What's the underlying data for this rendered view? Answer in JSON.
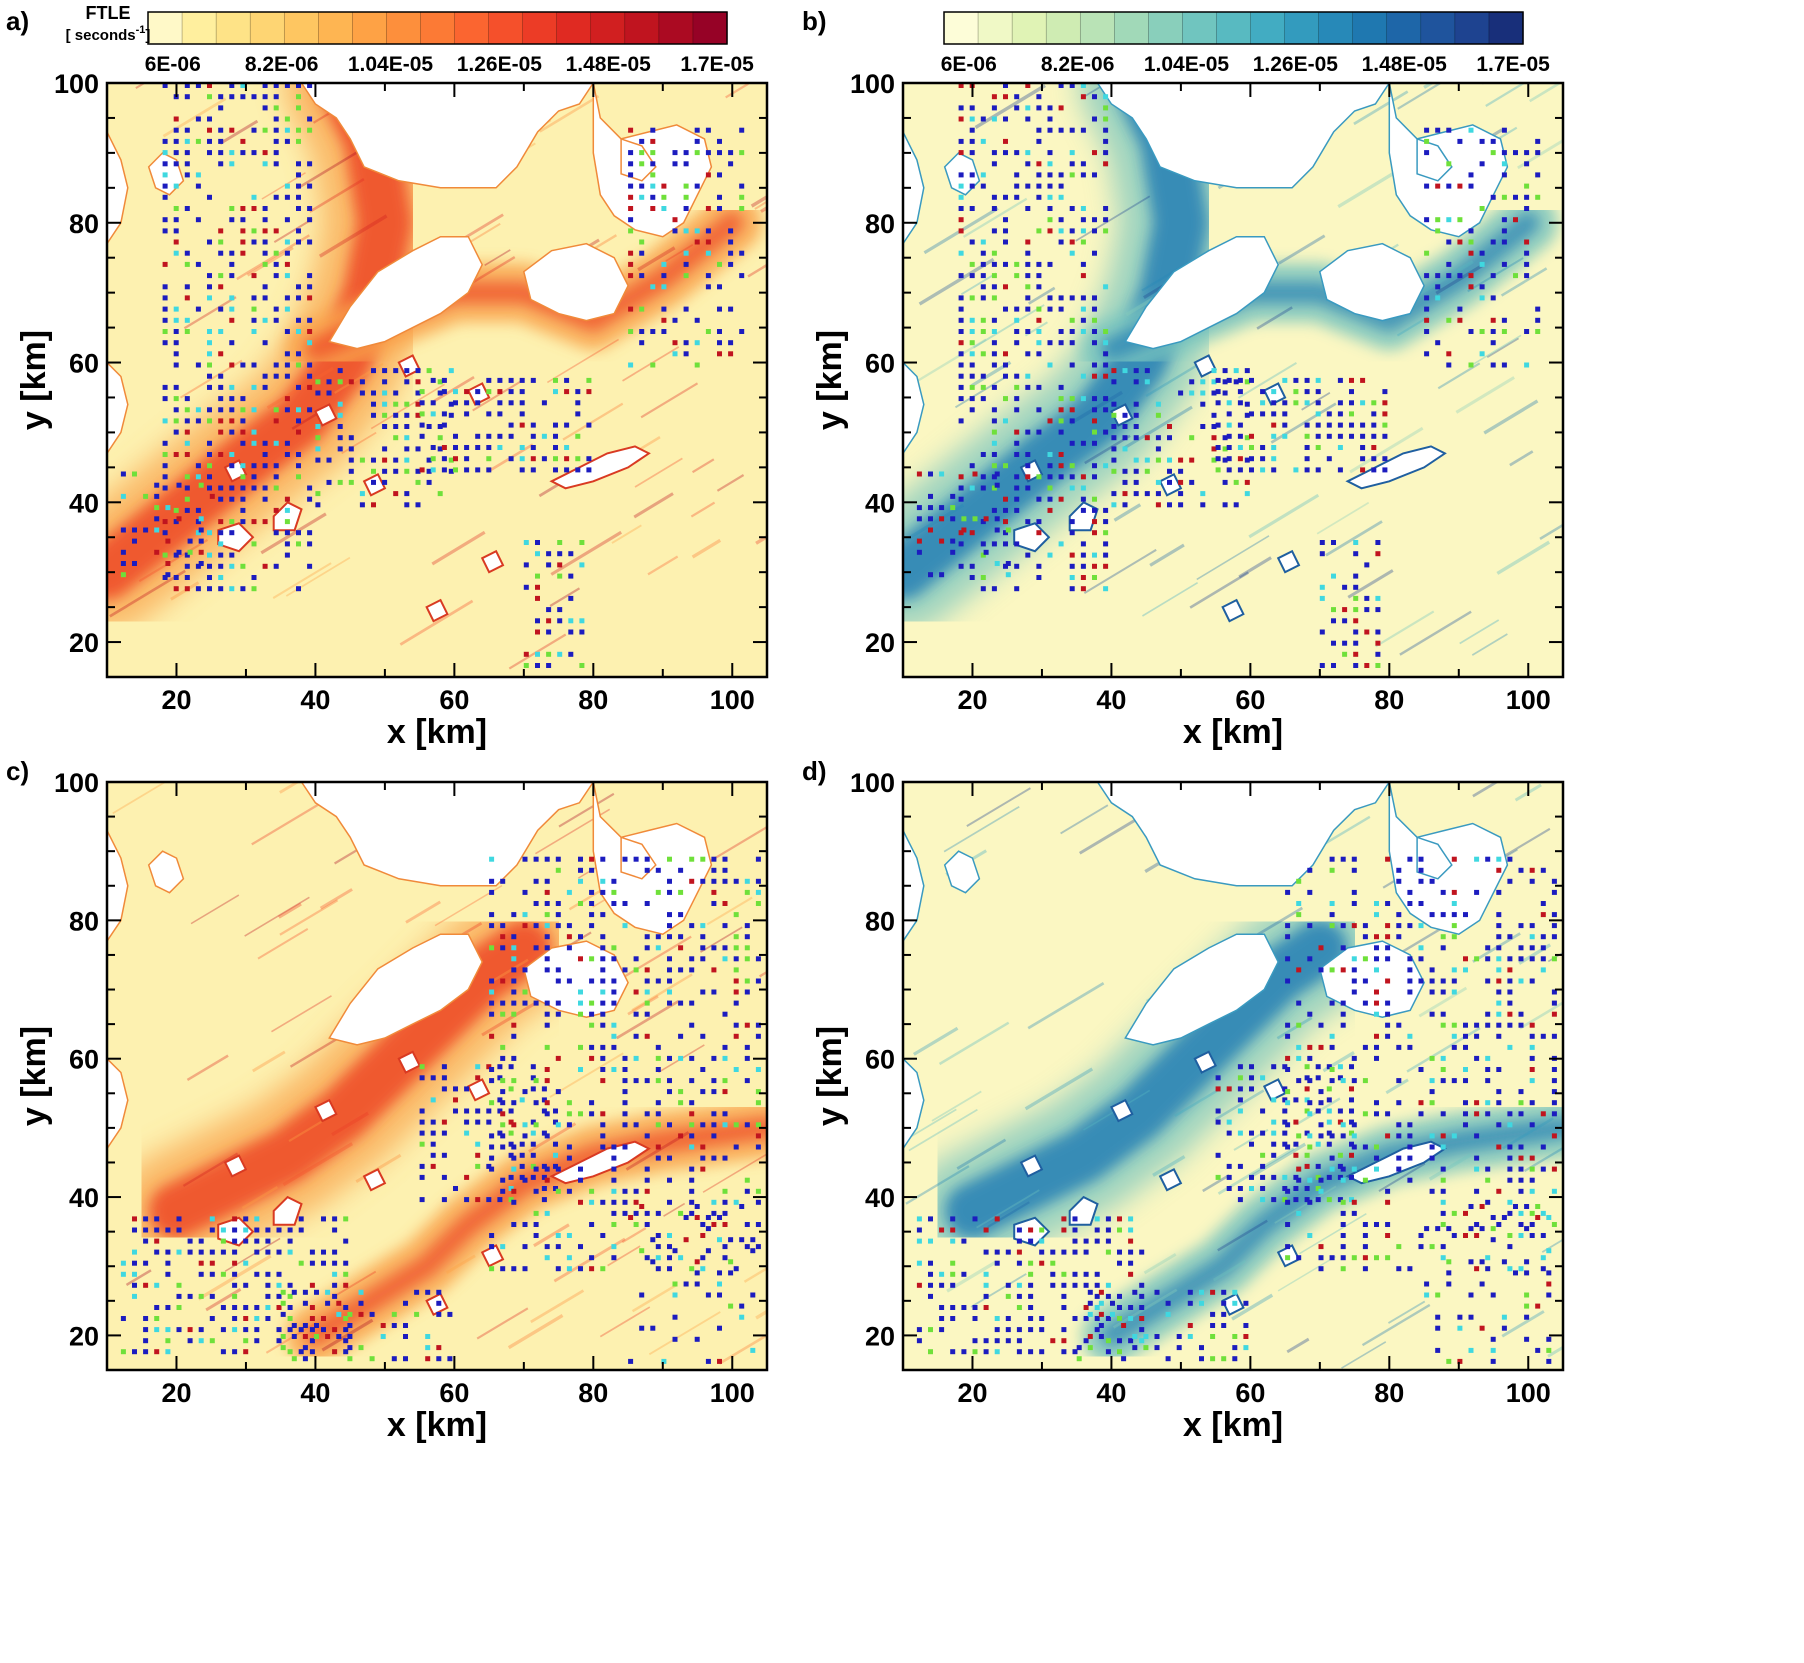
{
  "figure": {
    "colorbar_title": "FTLE",
    "colorbar_unit_open": "[ ",
    "colorbar_unit": "seconds",
    "colorbar_unit_sup": "-1",
    "colorbar_unit_close": "]"
  },
  "colors": {
    "ylorrd": [
      "#fff9c8",
      "#ffef9e",
      "#fee387",
      "#fed573",
      "#fec661",
      "#feb552",
      "#fea245",
      "#fd8f3c",
      "#fc7a35",
      "#fb6530",
      "#f5502b",
      "#ec3c26",
      "#e02a22",
      "#d11f20",
      "#c0141f",
      "#ab0a22",
      "#960226"
    ],
    "ylgnbu": [
      "#fdfdd8",
      "#f0f9c6",
      "#e0f3b5",
      "#cfecb3",
      "#b9e3b6",
      "#a1d9b8",
      "#89cfbb",
      "#70c5bf",
      "#58bac1",
      "#42acc2",
      "#339bbe",
      "#2789b8",
      "#1f78b0",
      "#1e66a8",
      "#1f549d",
      "#1e4390",
      "#182f7a"
    ],
    "sea_red": "#fdf1b0",
    "sea_blue": "#fbf7c2",
    "band_red": "#ee4a26",
    "band_red_light": "#f9a64f",
    "band_blue": "#2680b5",
    "band_blue_light": "#7ec7bf",
    "land": "#ffffff",
    "marker_blue": "#1c1cbf",
    "marker_red": "#c0141f",
    "marker_cyan": "#3fd8e0",
    "marker_green": "#6fe03a"
  },
  "chart_data": [
    {
      "panel": "a)",
      "type": "heatmap",
      "colormap": "ylorrd",
      "colorbar": true,
      "colorbar_ticks": [
        "6E-06",
        "8.2E-06",
        "1.04E-05",
        "1.26E-05",
        "1.48E-05",
        "1.7E-05"
      ],
      "colorbar_range": [
        5.5e-06,
        1.72e-05
      ],
      "xlabel": "x [km]",
      "ylabel": "y [km]",
      "xlim": [
        10,
        105
      ],
      "ylim": [
        15,
        100
      ],
      "xticks": [
        20,
        40,
        60,
        80,
        100
      ],
      "yticks": [
        20,
        40,
        60,
        80,
        100
      ]
    },
    {
      "panel": "b)",
      "type": "heatmap",
      "colormap": "ylgnbu",
      "colorbar": true,
      "colorbar_ticks": [
        "6E-06",
        "8.2E-06",
        "1.04E-05",
        "1.26E-05",
        "1.48E-05",
        "1.7E-05"
      ],
      "colorbar_range": [
        5.5e-06,
        1.72e-05
      ],
      "xlabel": "x [km]",
      "ylabel": "y [km]",
      "xlim": [
        10,
        105
      ],
      "ylim": [
        15,
        100
      ],
      "xticks": [
        20,
        40,
        60,
        80,
        100
      ],
      "yticks": [
        20,
        40,
        60,
        80,
        100
      ]
    },
    {
      "panel": "c)",
      "type": "heatmap",
      "colormap": "ylorrd",
      "colorbar": false,
      "xlabel": "x [km]",
      "ylabel": "y [km]",
      "xlim": [
        10,
        105
      ],
      "ylim": [
        15,
        100
      ],
      "xticks": [
        20,
        40,
        60,
        80,
        100
      ],
      "yticks": [
        20,
        40,
        60,
        80,
        100
      ]
    },
    {
      "panel": "d)",
      "type": "heatmap",
      "colormap": "ylgnbu",
      "colorbar": false,
      "xlabel": "x [km]",
      "ylabel": "y [km]",
      "xlim": [
        10,
        105
      ],
      "ylim": [
        15,
        100
      ],
      "xticks": [
        20,
        40,
        60,
        80,
        100
      ],
      "yticks": [
        20,
        40,
        60,
        80,
        100
      ]
    }
  ]
}
